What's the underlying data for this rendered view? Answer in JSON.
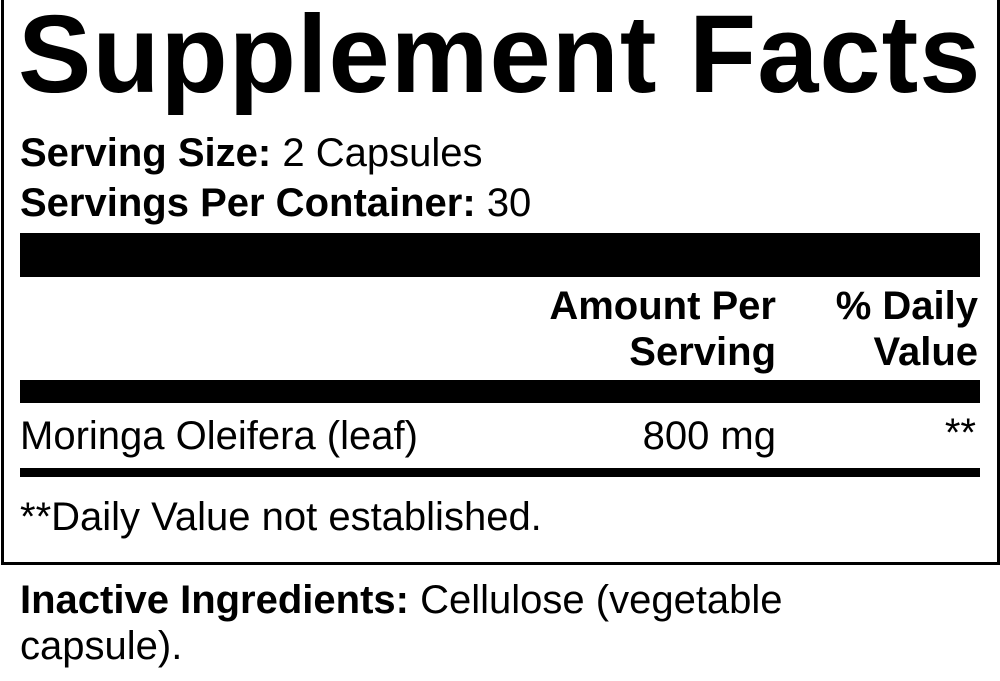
{
  "title": "Supplement Facts",
  "serving_size": {
    "label": "Serving Size:",
    "value": "2 Capsules"
  },
  "servings_per_container": {
    "label": "Servings Per Container:",
    "value": "30"
  },
  "columns": {
    "amount_line1": "Amount Per",
    "amount_line2": "Serving",
    "dv_line1": "% Daily",
    "dv_line2": "Value"
  },
  "rows": [
    {
      "name": "Moringa Oleifera (leaf)",
      "amount": "800 mg",
      "dv": "**"
    }
  ],
  "footnote": "**Daily Value not established.",
  "inactive": {
    "label": "Inactive Ingredients:",
    "value_line1": "Cellulose (vegetable",
    "value_line2": "capsule)."
  }
}
